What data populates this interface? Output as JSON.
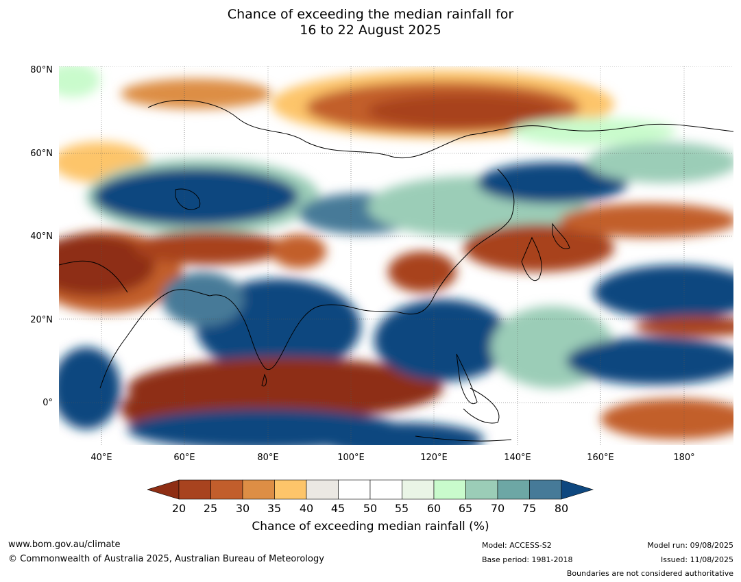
{
  "title": {
    "line1": "Chance of exceeding the median rainfall for",
    "line2": "16 to 22 August 2025"
  },
  "map": {
    "lat_labels": [
      "80°N",
      "60°N",
      "40°N",
      "20°N",
      "0°"
    ],
    "lon_labels": [
      "40°E",
      "60°E",
      "80°E",
      "100°E",
      "120°E",
      "140°E",
      "160°E",
      "180°"
    ],
    "colors": {
      "lt20": "#8e2e14",
      "c20_25": "#a8431f",
      "c25_30": "#c25e2c",
      "c30_35": "#dd8e45",
      "c35_40": "#fdc56a",
      "c40_45": "#ebe8e3",
      "c45_55": "#ffffff",
      "c55_60": "#eaf5e6",
      "c60_65": "#c9fbcc",
      "c65_70": "#9bcdb7",
      "c70_75": "#6da7a5",
      "c75_80": "#467a98",
      "gt80": "#0e477f",
      "land_outline": "#000000",
      "border": "#808080"
    }
  },
  "colorbar": {
    "ticks": [
      "20",
      "25",
      "30",
      "35",
      "40",
      "45",
      "50",
      "55",
      "60",
      "65",
      "70",
      "75",
      "80"
    ],
    "label": "Chance of exceeding median rainfall (%)"
  },
  "footer": {
    "url": "www.bom.gov.au/climate",
    "copyright": "© Commonwealth of Australia 2025, Australian Bureau of Meteorology",
    "model": "Model: ACCESS-S2",
    "base_period": "Base period: 1981-2018",
    "model_run": "Model run: 09/08/2025",
    "issued": "Issued: 11/08/2025",
    "disclaimer": "Boundaries are not considered authoritative"
  }
}
